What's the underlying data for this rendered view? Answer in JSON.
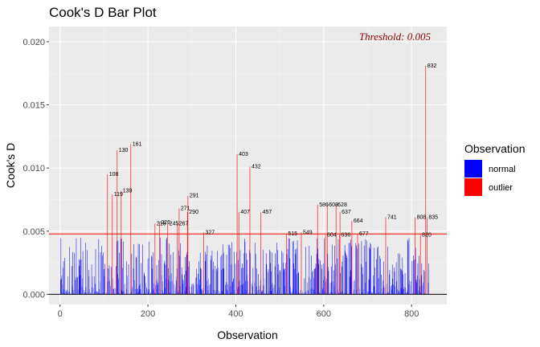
{
  "chart_data": {
    "type": "bar",
    "title": "Cook's D Bar Plot",
    "xlabel": "Observation",
    "ylabel": "Cook's D",
    "xlim": [
      -25,
      880
    ],
    "ylim": [
      -0.0008,
      0.0212
    ],
    "x_ticks": [
      0,
      200,
      400,
      600,
      800
    ],
    "y_ticks": [
      0.0,
      0.005,
      0.01,
      0.015,
      0.02
    ],
    "y_tick_labels": [
      "0.000",
      "0.005",
      "0.010",
      "0.015",
      "0.020"
    ],
    "threshold": 0.00478,
    "threshold_label": "Threshold: 0.005",
    "grid": true,
    "legend": {
      "title": "Observation",
      "placement": "right",
      "entries": [
        {
          "label": "normal",
          "color": "#0000ff"
        },
        {
          "label": "outlier",
          "color": "#ff0000"
        }
      ]
    },
    "colors": {
      "normal": "#0000ff",
      "outlier": "#ff0000",
      "threshold": "#ff0000",
      "threshold_text": "#8b0000",
      "panel": "#ebebeb"
    },
    "n_observations": 840,
    "outliers": [
      {
        "x": 108,
        "y": 0.0095
      },
      {
        "x": 119,
        "y": 0.0079
      },
      {
        "x": 130,
        "y": 0.0114
      },
      {
        "x": 139,
        "y": 0.0082
      },
      {
        "x": 161,
        "y": 0.0119
      },
      {
        "x": 216,
        "y": 0.0056
      },
      {
        "x": 226,
        "y": 0.0057
      },
      {
        "x": 245,
        "y": 0.0056
      },
      {
        "x": 267,
        "y": 0.0056
      },
      {
        "x": 271,
        "y": 0.0068
      },
      {
        "x": 290,
        "y": 0.0065
      },
      {
        "x": 291,
        "y": 0.0078
      },
      {
        "x": 327,
        "y": 0.0049
      },
      {
        "x": 403,
        "y": 0.0111
      },
      {
        "x": 407,
        "y": 0.0065
      },
      {
        "x": 432,
        "y": 0.0101
      },
      {
        "x": 457,
        "y": 0.0065
      },
      {
        "x": 515,
        "y": 0.0048
      },
      {
        "x": 549,
        "y": 0.0049
      },
      {
        "x": 586,
        "y": 0.0071
      },
      {
        "x": 604,
        "y": 0.0047
      },
      {
        "x": 608,
        "y": 0.0071
      },
      {
        "x": 628,
        "y": 0.0071
      },
      {
        "x": 636,
        "y": 0.0047
      },
      {
        "x": 637,
        "y": 0.0065
      },
      {
        "x": 664,
        "y": 0.0058
      },
      {
        "x": 677,
        "y": 0.0048
      },
      {
        "x": 741,
        "y": 0.0061
      },
      {
        "x": 808,
        "y": 0.0061
      },
      {
        "x": 820,
        "y": 0.0047
      },
      {
        "x": 832,
        "y": 0.0181
      },
      {
        "x": 835,
        "y": 0.0061
      }
    ]
  }
}
